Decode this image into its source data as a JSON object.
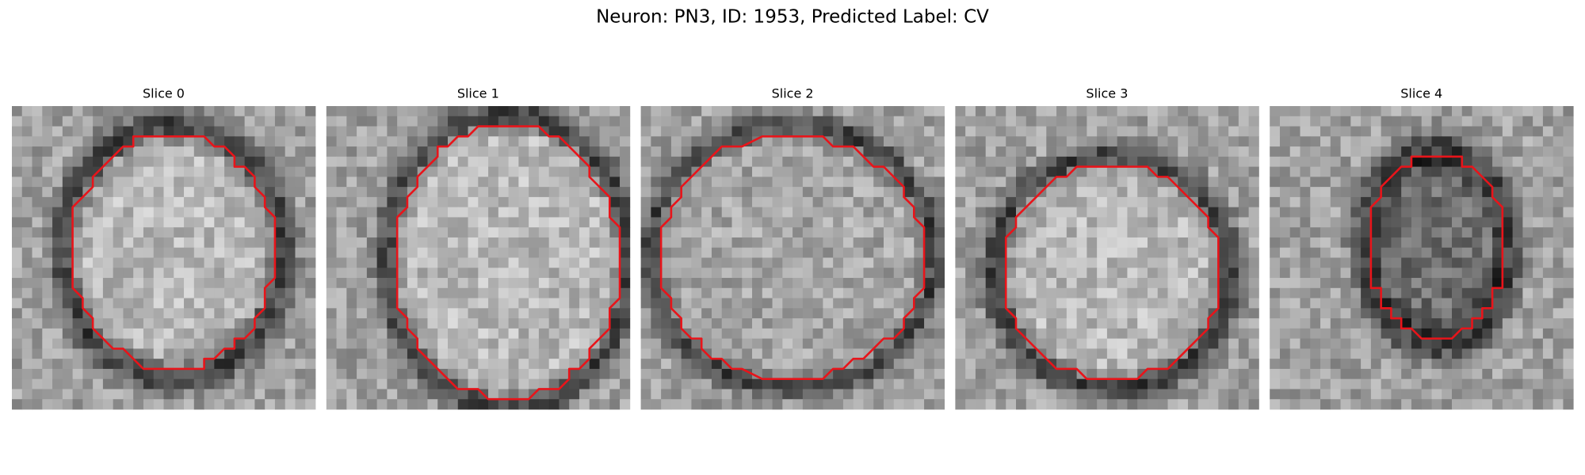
{
  "title": "Neuron: PN3, ID: 1953, Predicted Label: CV",
  "panels": [
    {
      "title": "Slice 0"
    },
    {
      "title": "Slice 1"
    },
    {
      "title": "Slice 2"
    },
    {
      "title": "Slice 3"
    },
    {
      "title": "Slice 4"
    }
  ]
}
